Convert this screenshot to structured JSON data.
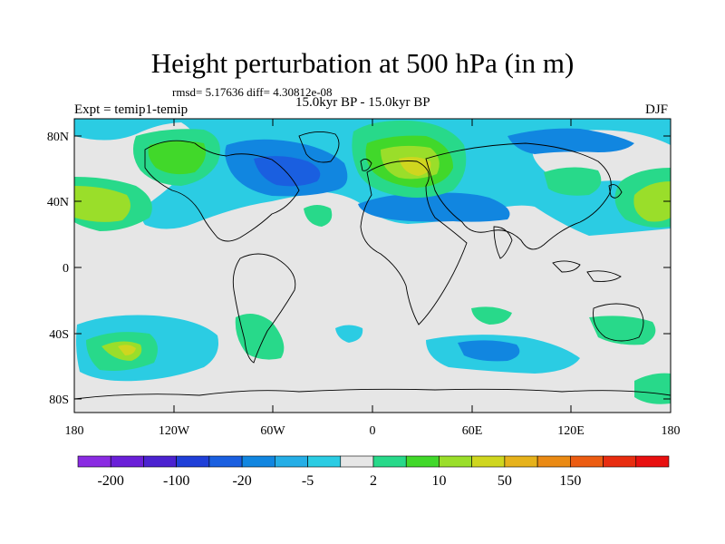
{
  "title": "Height perturbation at 500 hPa (in m)",
  "stats": "rmsd= 5.17636 diff= 4.30812e-08",
  "experiment": "Expt = temip1-temip",
  "period": "15.0kyr BP - 15.0kyr BP",
  "season": "DJF",
  "axes": {
    "lat_ticks": [
      "80N",
      "40N",
      "0",
      "40S",
      "80S"
    ],
    "lon_ticks": [
      "180",
      "120W",
      "60W",
      "0",
      "60E",
      "120E",
      "180"
    ]
  },
  "colorbar": {
    "colors": [
      "#8a2be2",
      "#6a1fd8",
      "#4b22d0",
      "#1f3fd8",
      "#1a5fe0",
      "#1186e0",
      "#25aee6",
      "#2bcce3",
      "#e6e6e6",
      "#28d98a",
      "#41d82a",
      "#9ade2a",
      "#cfd61f",
      "#e6b21b",
      "#ea8a14",
      "#ec5c12",
      "#e82d10",
      "#e81010"
    ],
    "labels": [
      "-200",
      "-100",
      "-20",
      "-5",
      "2",
      "10",
      "50",
      "150"
    ]
  },
  "map_colors": {
    "background": "#e6e6e6",
    "cyan": "#2bcce3",
    "light_blue": "#25aee6",
    "blue": "#1186e0",
    "deep_blue": "#1a5fe0",
    "green": "#28d98a",
    "lime": "#41d82a",
    "yellow_green": "#9ade2a",
    "yellow": "#cfd61f",
    "orange": "#e6b21b"
  }
}
